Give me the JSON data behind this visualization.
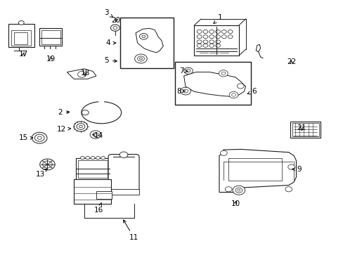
{
  "background_color": "#ffffff",
  "figure_width": 4.89,
  "figure_height": 3.6,
  "dpi": 100,
  "label_data": [
    [
      1,
      0.64,
      0.93,
      0.62,
      0.905
    ],
    [
      2,
      0.175,
      0.555,
      0.21,
      0.558
    ],
    [
      3,
      0.31,
      0.95,
      0.33,
      0.93
    ],
    [
      4,
      0.315,
      0.83,
      0.345,
      0.83
    ],
    [
      5,
      0.31,
      0.76,
      0.348,
      0.758
    ],
    [
      6,
      0.74,
      0.64,
      0.718,
      0.628
    ],
    [
      7,
      0.528,
      0.72,
      0.548,
      0.718
    ],
    [
      8,
      0.52,
      0.64,
      0.546,
      0.64
    ],
    [
      9,
      0.87,
      0.33,
      0.848,
      0.332
    ],
    [
      10,
      0.685,
      0.195,
      0.69,
      0.215
    ],
    [
      11,
      0.39,
      0.06,
      0.355,
      0.14
    ],
    [
      12,
      0.178,
      0.49,
      0.208,
      0.492
    ],
    [
      13,
      0.118,
      0.31,
      0.138,
      0.335
    ],
    [
      14,
      0.288,
      0.465,
      0.268,
      0.468
    ],
    [
      15,
      0.068,
      0.455,
      0.098,
      0.455
    ],
    [
      16,
      0.288,
      0.17,
      0.295,
      0.2
    ],
    [
      17,
      0.068,
      0.785,
      0.072,
      0.8
    ],
    [
      18,
      0.248,
      0.71,
      0.248,
      0.69
    ],
    [
      19,
      0.148,
      0.768,
      0.148,
      0.785
    ],
    [
      20,
      0.338,
      0.92,
      0.335,
      0.905
    ],
    [
      21,
      0.878,
      0.495,
      0.878,
      0.483
    ],
    [
      22,
      0.848,
      0.755,
      0.845,
      0.77
    ]
  ]
}
